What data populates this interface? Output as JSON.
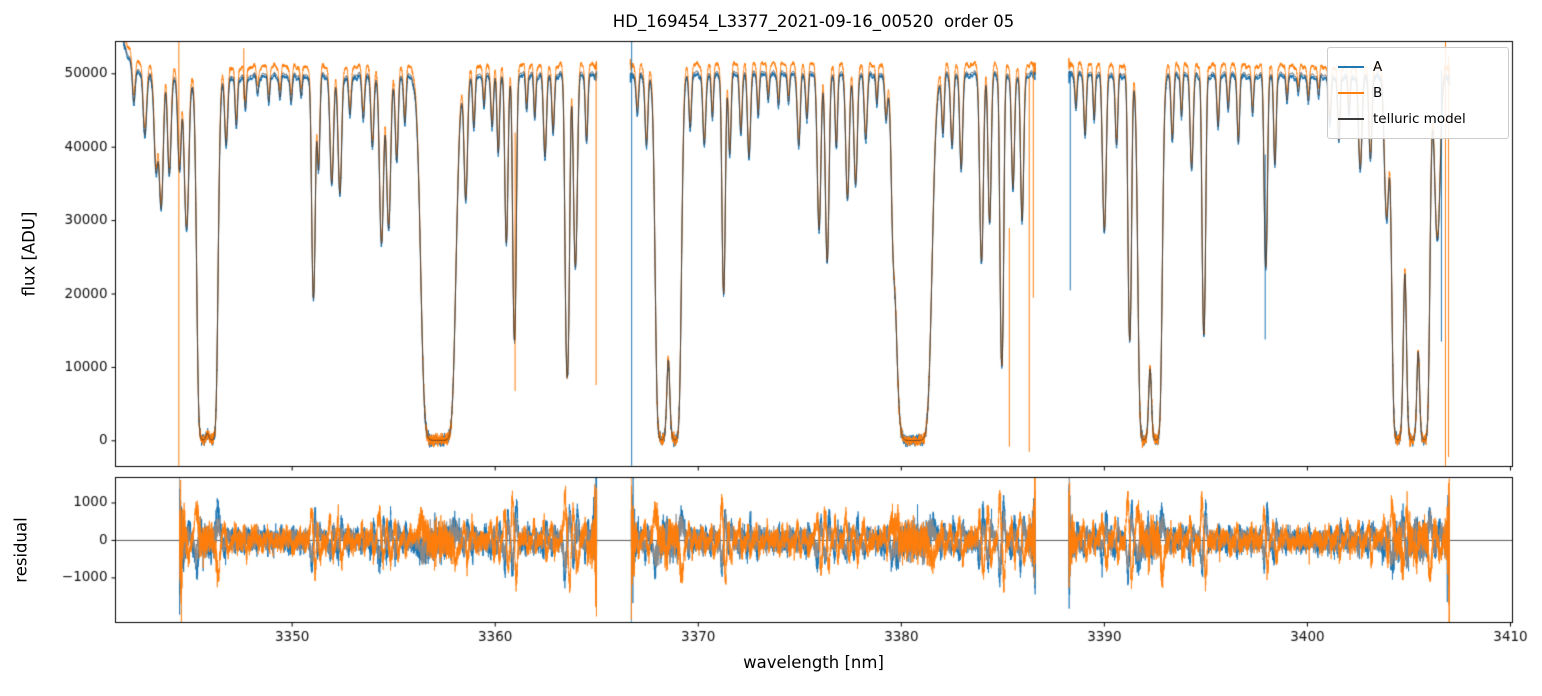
{
  "figure": {
    "title": "HD_169454_L3377_2021-09-16_00520  order 05"
  },
  "chart_data": {
    "type": "line",
    "title": "HD_169454_L3377_2021-09-16_00520  order 05",
    "xlabel": "wavelength [nm]",
    "xlim": [
      3341.3,
      3410.1
    ],
    "xticks": [
      3350,
      3360,
      3370,
      3380,
      3390,
      3400,
      3410
    ],
    "xtick_labels": [
      "3350",
      "3360",
      "3370",
      "3380",
      "3390",
      "3400",
      "3410"
    ],
    "grid": false,
    "legend": {
      "position": "upper right",
      "entries": [
        {
          "label": "A",
          "color": "#1f77b4"
        },
        {
          "label": "B",
          "color": "#ff7f0e"
        },
        {
          "label": "telluric model",
          "color": "#3a3a3a"
        }
      ]
    },
    "panels": [
      {
        "name": "flux",
        "ylabel": "flux [ADU]",
        "ylim": [
          -3500,
          54400
        ],
        "yticks": [
          0,
          10000,
          20000,
          30000,
          40000,
          50000
        ],
        "ytick_labels": [
          "0",
          "10000",
          "20000",
          "30000",
          "40000",
          "50000"
        ]
      },
      {
        "name": "residual",
        "ylabel": "residual",
        "ylim": [
          -2190,
          1680
        ],
        "yticks": [
          -1000,
          0,
          1000
        ],
        "ytick_labels": [
          "−1000",
          "0",
          "1000"
        ],
        "zero_line": true
      }
    ],
    "series_params": {
      "continuum_adu": 50150,
      "A_scale": 0.992,
      "B_scale": 1.022,
      "model_scale": 1.0,
      "noise_sigma_adu": 105
    },
    "segments_nm": [
      [
        3341.6,
        3365.0
      ],
      [
        3366.65,
        3386.6
      ],
      [
        3388.25,
        3407.0
      ]
    ],
    "residual_segments_nm": [
      [
        3344.45,
        3365.0
      ],
      [
        3366.7,
        3386.6
      ],
      [
        3388.25,
        3407.0
      ]
    ],
    "absorption_lines": [
      [
        3342.2,
        0.1,
        0.06
      ],
      [
        3342.75,
        0.18,
        0.08
      ],
      [
        3343.3,
        0.3,
        0.09
      ],
      [
        3343.55,
        0.45,
        0.09
      ],
      [
        3343.95,
        0.32,
        0.08
      ],
      [
        3344.45,
        0.3,
        0.08
      ],
      [
        3344.8,
        0.55,
        0.1
      ],
      [
        3345.6,
        6,
        0.15
      ],
      [
        3346.05,
        6,
        0.15
      ],
      [
        3346.75,
        0.22,
        0.07
      ],
      [
        3347.25,
        0.15,
        0.06
      ],
      [
        3347.7,
        0.1,
        0.05
      ],
      [
        3348.3,
        0.05,
        0.05
      ],
      [
        3348.85,
        0.07,
        0.05
      ],
      [
        3349.4,
        0.06,
        0.05
      ],
      [
        3349.95,
        0.08,
        0.05
      ],
      [
        3350.45,
        0.06,
        0.05
      ],
      [
        3351.05,
        0.95,
        0.075
      ],
      [
        3351.3,
        0.3,
        0.06
      ],
      [
        3351.95,
        0.36,
        0.08
      ],
      [
        3352.35,
        0.4,
        0.08
      ],
      [
        3352.85,
        0.12,
        0.06
      ],
      [
        3353.5,
        0.13,
        0.06
      ],
      [
        3353.95,
        0.22,
        0.07
      ],
      [
        3354.4,
        0.62,
        0.09
      ],
      [
        3354.75,
        0.55,
        0.09
      ],
      [
        3355.15,
        0.27,
        0.07
      ],
      [
        3355.55,
        0.14,
        0.06
      ],
      [
        3356.9,
        6,
        0.28
      ],
      [
        3357.5,
        6,
        0.28
      ],
      [
        3358.55,
        0.42,
        0.08
      ],
      [
        3358.95,
        0.16,
        0.06
      ],
      [
        3359.45,
        0.1,
        0.05
      ],
      [
        3359.85,
        0.16,
        0.06
      ],
      [
        3360.15,
        0.24,
        0.06
      ],
      [
        3360.55,
        0.62,
        0.07
      ],
      [
        3360.95,
        1.3,
        0.07
      ],
      [
        3361.55,
        0.1,
        0.05
      ],
      [
        3361.95,
        0.13,
        0.05
      ],
      [
        3362.45,
        0.26,
        0.07
      ],
      [
        3362.85,
        0.18,
        0.06
      ],
      [
        3363.55,
        1.75,
        0.08
      ],
      [
        3363.95,
        0.75,
        0.08
      ],
      [
        3364.5,
        0.2,
        0.06
      ],
      [
        3367.0,
        0.12,
        0.06
      ],
      [
        3367.45,
        0.22,
        0.07
      ],
      [
        3368.2,
        6,
        0.16
      ],
      [
        3368.85,
        6,
        0.16
      ],
      [
        3369.6,
        0.16,
        0.06
      ],
      [
        3370.3,
        0.22,
        0.07
      ],
      [
        3370.7,
        0.13,
        0.05
      ],
      [
        3371.25,
        0.92,
        0.07
      ],
      [
        3371.55,
        0.25,
        0.06
      ],
      [
        3372.1,
        0.18,
        0.06
      ],
      [
        3372.5,
        0.26,
        0.07
      ],
      [
        3372.95,
        0.12,
        0.05
      ],
      [
        3373.45,
        0.07,
        0.05
      ],
      [
        3373.95,
        0.09,
        0.05
      ],
      [
        3374.45,
        0.08,
        0.05
      ],
      [
        3374.95,
        0.22,
        0.07
      ],
      [
        3375.35,
        0.13,
        0.06
      ],
      [
        3375.95,
        0.56,
        0.08
      ],
      [
        3376.35,
        0.72,
        0.08
      ],
      [
        3376.8,
        0.22,
        0.06
      ],
      [
        3377.35,
        0.42,
        0.08
      ],
      [
        3377.75,
        0.36,
        0.08
      ],
      [
        3378.25,
        0.2,
        0.07
      ],
      [
        3378.8,
        0.09,
        0.05
      ],
      [
        3379.25,
        0.13,
        0.06
      ],
      [
        3379.6,
        0.32,
        0.08
      ],
      [
        3380.3,
        6,
        0.3
      ],
      [
        3380.9,
        6,
        0.3
      ],
      [
        3382.05,
        0.18,
        0.06
      ],
      [
        3382.5,
        0.22,
        0.07
      ],
      [
        3382.95,
        0.3,
        0.07
      ],
      [
        3383.95,
        0.72,
        0.08
      ],
      [
        3384.35,
        0.52,
        0.07
      ],
      [
        3384.95,
        1.6,
        0.07
      ],
      [
        3385.5,
        0.38,
        0.07
      ],
      [
        3385.95,
        0.52,
        0.07
      ],
      [
        3388.6,
        0.1,
        0.05
      ],
      [
        3389.05,
        0.18,
        0.06
      ],
      [
        3389.5,
        0.13,
        0.05
      ],
      [
        3390.0,
        0.56,
        0.08
      ],
      [
        3390.6,
        0.22,
        0.06
      ],
      [
        3391.25,
        1.3,
        0.07
      ],
      [
        3391.95,
        6,
        0.15
      ],
      [
        3392.55,
        6,
        0.15
      ],
      [
        3393.35,
        0.2,
        0.06
      ],
      [
        3393.8,
        0.12,
        0.05
      ],
      [
        3394.3,
        0.3,
        0.07
      ],
      [
        3394.9,
        1.25,
        0.07
      ],
      [
        3395.6,
        0.15,
        0.06
      ],
      [
        3396.1,
        0.1,
        0.05
      ],
      [
        3396.6,
        0.2,
        0.06
      ],
      [
        3397.3,
        0.12,
        0.05
      ],
      [
        3397.95,
        0.75,
        0.07
      ],
      [
        3398.4,
        0.28,
        0.06
      ],
      [
        3399.0,
        0.07,
        0.05
      ],
      [
        3399.55,
        0.05,
        0.05
      ],
      [
        3400.05,
        0.08,
        0.05
      ],
      [
        3400.55,
        0.06,
        0.05
      ],
      [
        3401.1,
        0.15,
        0.06
      ],
      [
        3401.55,
        0.2,
        0.06
      ],
      [
        3402.05,
        0.12,
        0.05
      ],
      [
        3402.6,
        0.3,
        0.08
      ],
      [
        3403.1,
        0.26,
        0.07
      ],
      [
        3403.9,
        0.5,
        0.1
      ],
      [
        3404.45,
        6,
        0.15
      ],
      [
        3405.15,
        6,
        0.15
      ],
      [
        3405.75,
        6,
        0.14
      ],
      [
        3406.4,
        0.6,
        0.12
      ]
    ],
    "noise_spikes": [
      [
        3344.42,
        "B",
        -3400,
        54400
      ],
      [
        3347.62,
        "B",
        46500,
        53500
      ],
      [
        3360.98,
        "B",
        6800,
        42000
      ],
      [
        3364.97,
        "B",
        7600,
        50500
      ],
      [
        3366.72,
        "A",
        -3400,
        54400
      ],
      [
        3385.32,
        "B",
        -800,
        29000
      ],
      [
        3386.3,
        "B",
        -1500,
        49500
      ],
      [
        3386.5,
        "B",
        19500,
        51500
      ],
      [
        3388.32,
        "A",
        20500,
        50000
      ],
      [
        3397.92,
        "A",
        13800,
        39000
      ],
      [
        3406.6,
        "A",
        13500,
        50500
      ],
      [
        3406.8,
        "B",
        -3400,
        54400
      ],
      [
        3406.95,
        "B",
        -2200,
        52500
      ]
    ]
  }
}
